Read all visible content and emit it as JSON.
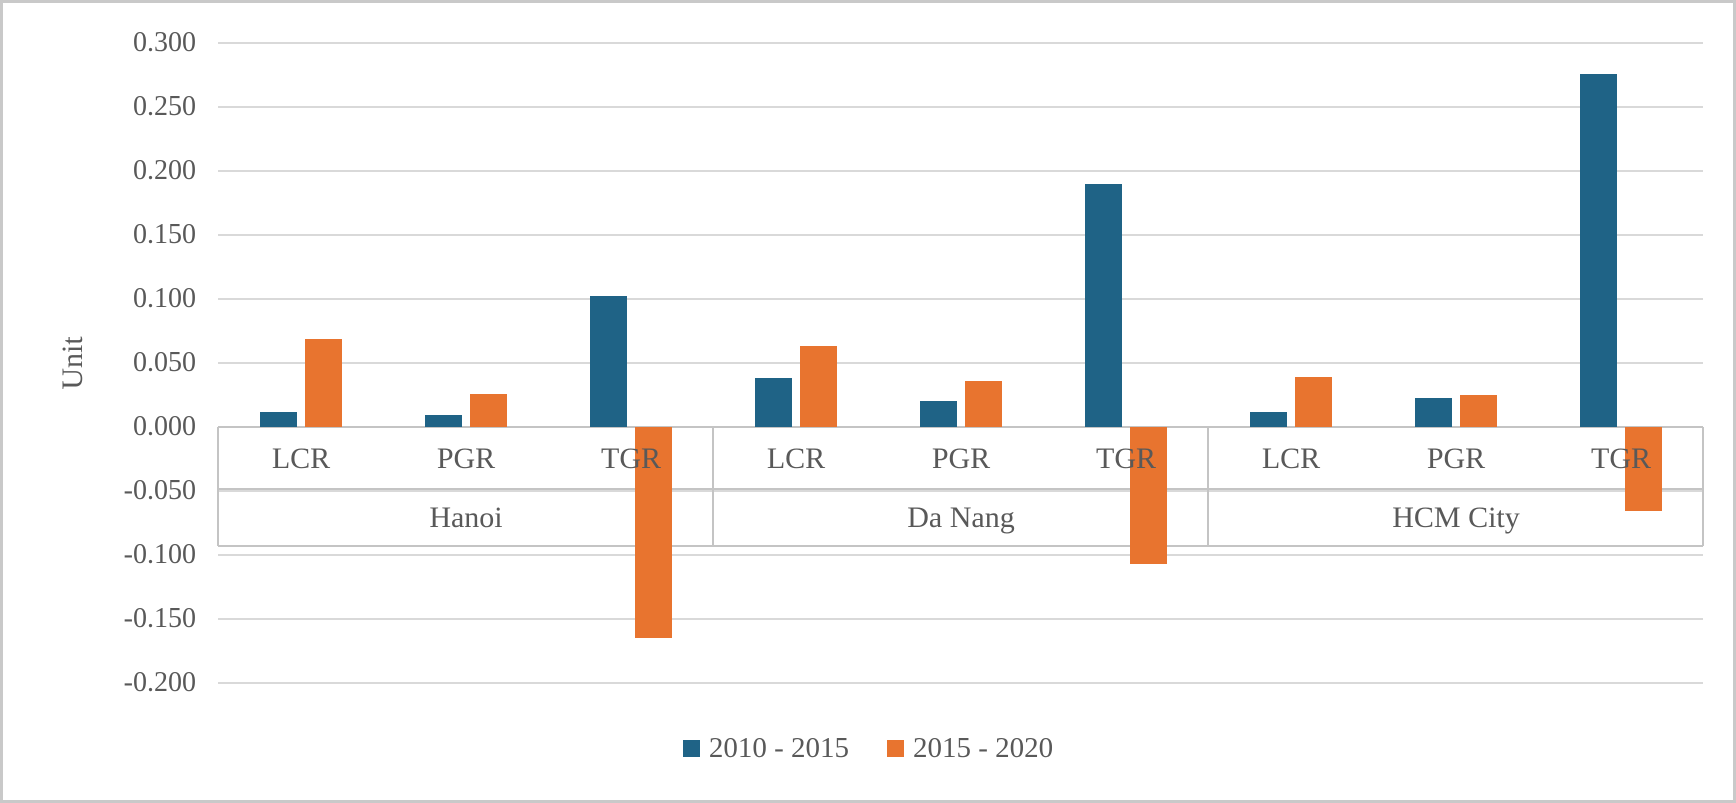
{
  "chart_data": {
    "type": "bar",
    "title": "",
    "ylabel": "Unit",
    "xlabel": "",
    "ylim": [
      -0.2,
      0.3
    ],
    "ytick_step": 0.05,
    "ytick_labels": [
      "0.300",
      "0.250",
      "0.200",
      "0.150",
      "0.100",
      "0.050",
      "0.000",
      "-0.050",
      "-0.100",
      "-0.150",
      "-0.200"
    ],
    "grid": true,
    "legend_position": "bottom",
    "groups": [
      "Hanoi",
      "Da Nang",
      "HCM City"
    ],
    "categories": [
      "LCR",
      "PGR",
      "TGR"
    ],
    "series": [
      {
        "name": "2010 - 2015",
        "color": "#1F6386",
        "values": [
          [
            0.012,
            0.009,
            0.102
          ],
          [
            0.038,
            0.02,
            0.19
          ],
          [
            0.012,
            0.023,
            0.276
          ]
        ]
      },
      {
        "name": "2015 - 2020",
        "color": "#E8742F",
        "values": [
          [
            0.069,
            0.026,
            -0.165
          ],
          [
            0.063,
            0.036,
            -0.107
          ],
          [
            0.039,
            0.025,
            -0.066
          ]
        ]
      }
    ],
    "colors": {
      "gridline": "#D9D9D9",
      "axis_band_border": "#C4C4C4",
      "text": "#595959",
      "background": "#FFFFFF",
      "figure_border": "#C9C9C9"
    }
  }
}
